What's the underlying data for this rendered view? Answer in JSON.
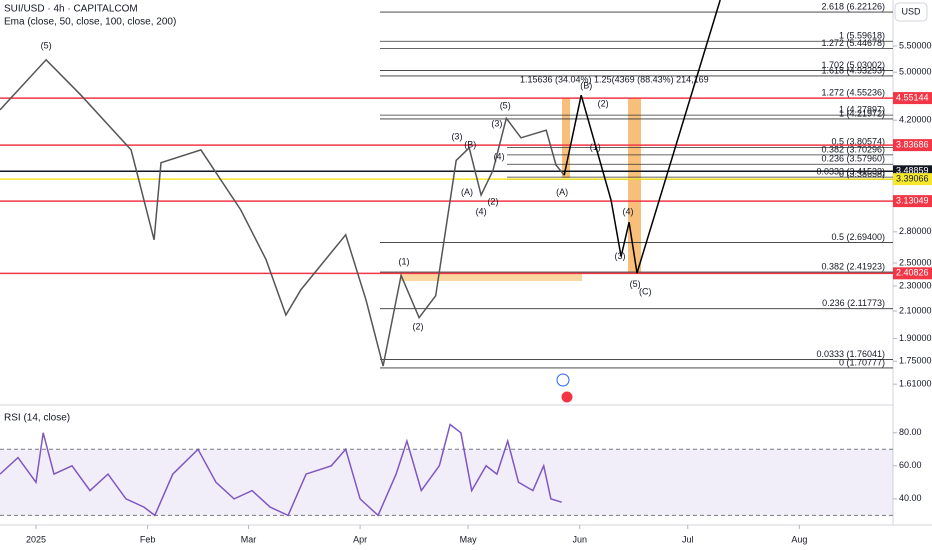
{
  "chart_data": [
    {
      "type": "line",
      "title": "SUI/USD · 4h · CAPITALCOM",
      "subtitle": "Ema (close, 50, close, 100, close, 200)",
      "currency": "USD",
      "log_scale": true,
      "xlim": [
        -10,
        238
      ],
      "xticks": [
        {
          "value": 0,
          "label": "2025"
        },
        {
          "value": 31,
          "label": "Feb"
        },
        {
          "value": 59,
          "label": "Mar"
        },
        {
          "value": 90,
          "label": "Apr"
        },
        {
          "value": 120,
          "label": "May"
        },
        {
          "value": 151,
          "label": "Jun"
        },
        {
          "value": 181,
          "label": "Jul"
        },
        {
          "value": 212,
          "label": "Aug"
        }
      ],
      "ylim": [
        1.52,
        6.5
      ],
      "yticks": [
        {
          "value": 1.61,
          "label": "1.61000"
        },
        {
          "value": 1.75,
          "label": "1.75000"
        },
        {
          "value": 1.9,
          "label": "1.90000"
        },
        {
          "value": 2.1,
          "label": "2.10000"
        },
        {
          "value": 2.3,
          "label": "2.30000"
        },
        {
          "value": 2.5,
          "label": "2.50000"
        },
        {
          "value": 2.8,
          "label": "2.80000"
        },
        {
          "value": 4.2,
          "label": "4.20000"
        },
        {
          "value": 5.0,
          "label": "5.00000"
        },
        {
          "value": 5.5,
          "label": "5.50000"
        }
      ],
      "series": [
        {
          "color": "#555555",
          "x": [
            -10,
            2.8,
            12.5,
            26.4,
            32.8,
            34.7,
            45.8,
            56.9,
            63.9,
            69.4,
            73.6,
            86,
            91.7,
            96.4,
            101.4,
            106.4,
            111,
            116.7,
            120.3,
            123.6,
            126.9,
            130.6,
            134.7,
            141.7,
            144.4,
            146.7
          ],
          "values": [
            4.36,
            5.23,
            4.6,
            3.77,
            2.72,
            3.6,
            3.77,
            3.03,
            2.53,
            2.07,
            2.27,
            2.77,
            2.18,
            1.72,
            2.39,
            2.05,
            2.22,
            3.63,
            3.8,
            3.2,
            3.5,
            4.23,
            3.94,
            4.05,
            3.57,
            3.44
          ]
        },
        {
          "color": "#000000",
          "x": [
            146.7,
            151.4,
            159.7,
            162.5,
            164.7,
            166.9,
            190
          ],
          "values": [
            3.44,
            4.6,
            3.14,
            2.56,
            2.9,
            2.41,
            6.5
          ]
        }
      ],
      "levels": [
        {
          "value": 4.55144,
          "color": "#f23645"
        },
        {
          "value": 3.83686,
          "color": "#f23645"
        },
        {
          "value": 3.48859,
          "color": "#131722"
        },
        {
          "value": 3.39066,
          "color": "#f7e72c"
        },
        {
          "value": 3.13049,
          "color": "#f23645"
        },
        {
          "value": 2.40826,
          "color": "#f23645"
        }
      ],
      "fib_sets": [
        {
          "levels": [
            {
              "value": 6.22126,
              "label": "2.618 (6.22126)"
            },
            {
              "value": 5.44678,
              "label": "1.272 (5.44678)"
            },
            {
              "value": 5.59618,
              "label": "1 (5.59618)"
            },
            {
              "value": 5.03002,
              "label": "1.702 (5.03002)"
            },
            {
              "value": 4.93293,
              "label": "1.618 (4.93293)"
            },
            {
              "value": 4.55236,
              "label": "1.272 (4.55236)"
            },
            {
              "value": 4.27897,
              "label": "1 (4.27897)"
            },
            {
              "value": 4.21972,
              "label": "1 (4.21972)"
            }
          ]
        },
        {
          "levels": [
            {
              "value": 3.80574,
              "label": "0.5 (3.80574)"
            },
            {
              "value": 3.70296,
              "label": "0.382 (3.70296)"
            },
            {
              "value": 3.5796,
              "label": "0.236 (3.57960)"
            },
            {
              "value": 3.41533,
              "label": "0.0333 (3.41533)"
            },
            {
              "value": 3.38658,
              "label": "0 (3.38658)"
            }
          ]
        },
        {
          "levels": [
            {
              "value": 2.694,
              "label": "0.5 (2.69400)"
            },
            {
              "value": 2.41923,
              "label": "0.382 (2.41923)"
            },
            {
              "value": 2.11773,
              "label": "0.236 (2.11773)"
            },
            {
              "value": 1.76041,
              "label": "0.0333 (1.76041)"
            },
            {
              "value": 1.70777,
              "label": "0 (1.70777)"
            }
          ]
        }
      ],
      "measure_label": "1.15636 (34.04%) 1.25(4369 (88.43%) 214,169",
      "annotations": [
        {
          "text": "(5)",
          "x": 2.8,
          "y": 5.5
        },
        {
          "text": "(1)",
          "x": 102.2,
          "y": 2.51
        },
        {
          "text": "(2)",
          "x": 106.1,
          "y": 1.98
        },
        {
          "text": "(3)",
          "x": 116.9,
          "y": 3.95
        },
        {
          "text": "(B)",
          "x": 120.6,
          "y": 3.84
        },
        {
          "text": "(A)",
          "x": 119.7,
          "y": 3.23
        },
        {
          "text": "(4)",
          "x": 123.6,
          "y": 3.01
        },
        {
          "text": "(2)",
          "x": 126.9,
          "y": 3.12
        },
        {
          "text": "(3)",
          "x": 128,
          "y": 4.14
        },
        {
          "text": "(5)",
          "x": 130.3,
          "y": 4.42
        },
        {
          "text": "(4)",
          "x": 128.6,
          "y": 3.67
        },
        {
          "text": "(A)",
          "x": 146.1,
          "y": 3.23
        },
        {
          "text": "(B)",
          "x": 152.8,
          "y": 4.75
        },
        {
          "text": "(2)",
          "x": 157.5,
          "y": 4.45
        },
        {
          "text": "(1)",
          "x": 155.3,
          "y": 3.8
        },
        {
          "text": "(4)",
          "x": 164.4,
          "y": 3.01
        },
        {
          "text": "(3)",
          "x": 162.2,
          "y": 2.56
        },
        {
          "text": "(5)",
          "x": 166.4,
          "y": 2.31
        },
        {
          "text": "(C)",
          "x": 169.2,
          "y": 2.25
        }
      ]
    },
    {
      "type": "line",
      "title": "RSI (14, close)",
      "ylim": [
        26,
        95
      ],
      "yticks": [
        {
          "value": 40,
          "label": "40.00"
        },
        {
          "value": 60,
          "label": "60.00"
        },
        {
          "value": 80,
          "label": "80.00"
        }
      ],
      "bands": [
        30,
        70
      ],
      "series": [
        {
          "color": "#7e57c2",
          "x": [
            -10,
            -5,
            0,
            2,
            5,
            10,
            15,
            20,
            25,
            30,
            33,
            38,
            45,
            50,
            55,
            60,
            65,
            70,
            75,
            82,
            86,
            90,
            95,
            100,
            103,
            107,
            112,
            115,
            118,
            121,
            125,
            128,
            131,
            134,
            138,
            141,
            143,
            146
          ],
          "values": [
            55,
            65,
            50,
            80,
            55,
            60,
            45,
            55,
            40,
            35,
            30,
            55,
            70,
            50,
            40,
            45,
            35,
            30,
            55,
            60,
            70,
            40,
            30,
            55,
            75,
            45,
            60,
            85,
            80,
            45,
            60,
            55,
            75,
            50,
            45,
            60,
            40,
            38
          ]
        }
      ]
    }
  ]
}
